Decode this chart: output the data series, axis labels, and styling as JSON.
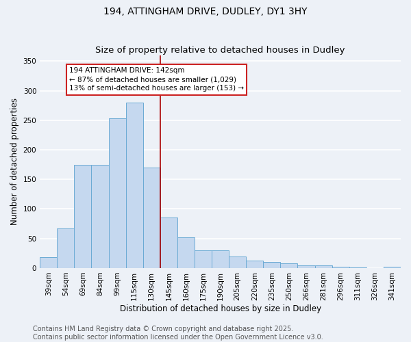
{
  "title": "194, ATTINGHAM DRIVE, DUDLEY, DY1 3HY",
  "subtitle": "Size of property relative to detached houses in Dudley",
  "xlabel": "Distribution of detached houses by size in Dudley",
  "ylabel": "Number of detached properties",
  "categories": [
    "39sqm",
    "54sqm",
    "69sqm",
    "84sqm",
    "99sqm",
    "115sqm",
    "130sqm",
    "145sqm",
    "160sqm",
    "175sqm",
    "190sqm",
    "205sqm",
    "220sqm",
    "235sqm",
    "250sqm",
    "266sqm",
    "281sqm",
    "296sqm",
    "311sqm",
    "326sqm",
    "341sqm"
  ],
  "values": [
    18,
    67,
    175,
    175,
    253,
    280,
    170,
    85,
    52,
    30,
    30,
    20,
    13,
    10,
    8,
    5,
    5,
    2,
    1,
    0,
    2
  ],
  "bar_color": "#c5d8ef",
  "bar_edge_color": "#6aaad4",
  "ylim": [
    0,
    360
  ],
  "yticks": [
    0,
    50,
    100,
    150,
    200,
    250,
    300,
    350
  ],
  "vline_color": "#aa0000",
  "annotation_text": "194 ATTINGHAM DRIVE: 142sqm\n← 87% of detached houses are smaller (1,029)\n13% of semi-detached houses are larger (153) →",
  "annotation_box_color": "#ffffff",
  "annotation_border_color": "#cc2222",
  "footer1": "Contains HM Land Registry data © Crown copyright and database right 2025.",
  "footer2": "Contains public sector information licensed under the Open Government Licence v3.0.",
  "background_color": "#edf1f7",
  "grid_color": "#ffffff",
  "title_fontsize": 10,
  "subtitle_fontsize": 9.5,
  "axis_label_fontsize": 8.5,
  "tick_fontsize": 7.5,
  "footer_fontsize": 7,
  "annotation_fontsize": 7.5
}
